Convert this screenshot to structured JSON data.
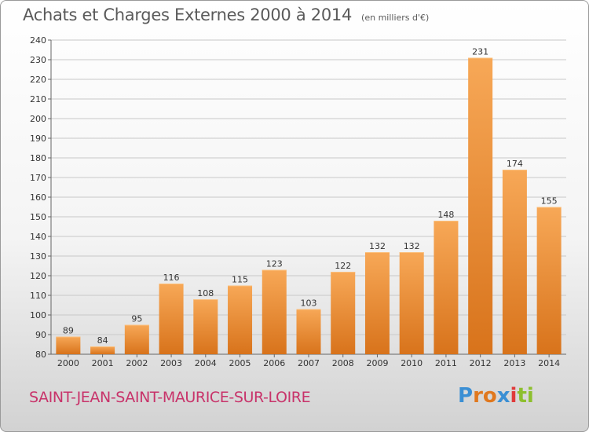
{
  "header": {
    "title": "Achats et Charges Externes 2000 à 2014",
    "subtitle": "(en milliers d'€)"
  },
  "footer": {
    "city": "SAINT-JEAN-SAINT-MAURICE-SUR-LOIRE",
    "logo_text": "Proxiti",
    "logo_letters": [
      "P",
      "r",
      "o",
      "x",
      "i",
      "t",
      "i"
    ],
    "logo_colors": [
      "#3b8fd4",
      "#e0781e",
      "#e0781e",
      "#3b8fd4",
      "#e03a3a",
      "#8dbf2e",
      "#8dbf2e"
    ]
  },
  "colors": {
    "bar_light": "#f7a857",
    "bar_dark": "#d8731b",
    "grid": "#c8c8c8",
    "title": "#5a5a5a",
    "city": "#c8336a"
  },
  "chart_data": {
    "type": "bar",
    "categories": [
      "2000",
      "2001",
      "2002",
      "2003",
      "2004",
      "2005",
      "2006",
      "2007",
      "2008",
      "2009",
      "2010",
      "2011",
      "2012",
      "2013",
      "2014"
    ],
    "values": [
      89,
      84,
      95,
      116,
      108,
      115,
      123,
      103,
      122,
      132,
      132,
      148,
      231,
      174,
      155
    ],
    "title": "Achats et Charges Externes 2000 à 2014",
    "subtitle": "(en milliers d'€)",
    "xlabel": "",
    "ylabel": "",
    "ylim": [
      80,
      240
    ],
    "yticks": [
      80,
      90,
      100,
      110,
      120,
      130,
      140,
      150,
      160,
      170,
      180,
      190,
      200,
      210,
      220,
      230,
      240
    ],
    "grid": true,
    "data_labels": true
  }
}
